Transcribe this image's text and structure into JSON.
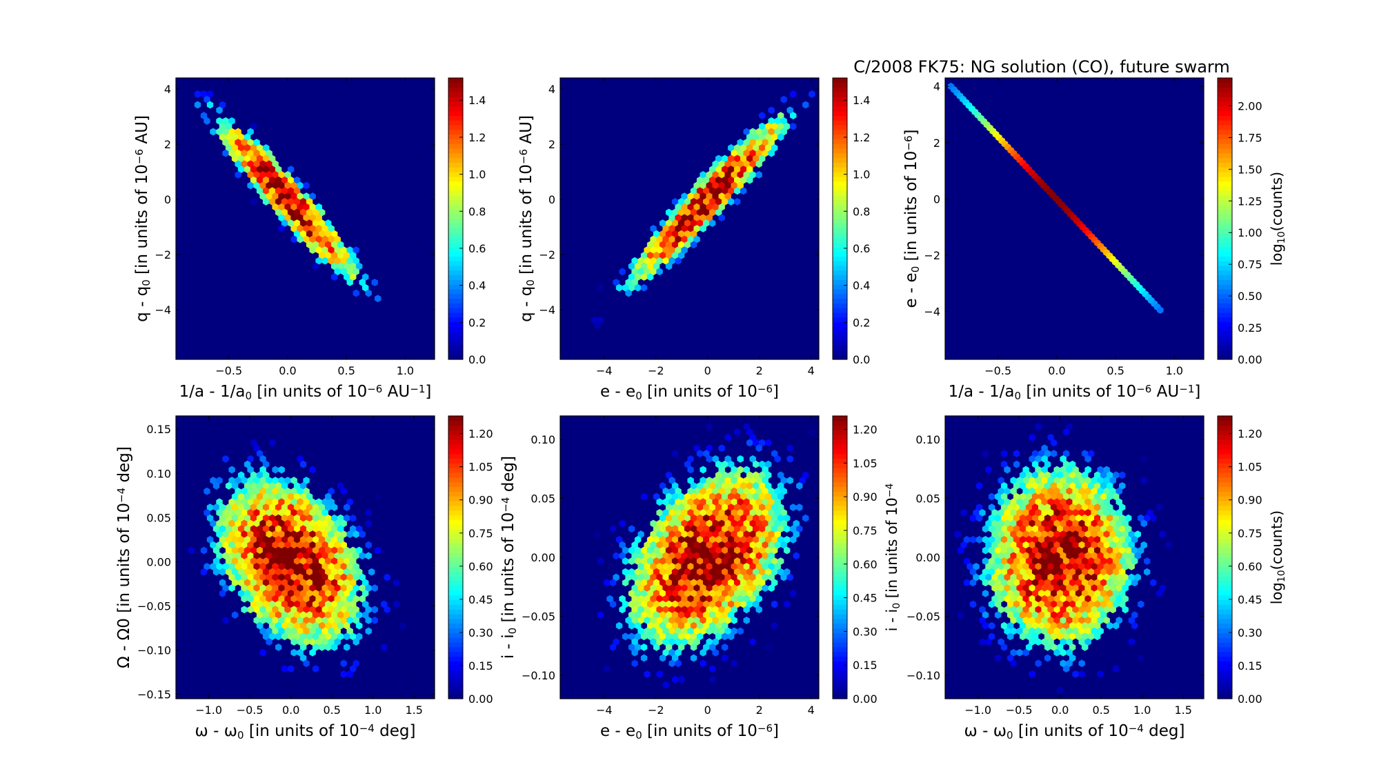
{
  "figure_title": "C/2008 FK75:  NG solution (CO), future swarm",
  "chart_data": [
    {
      "type": "heatmap",
      "subtype": "hexbin",
      "xlabel": "1/a - 1/a0 [in units of 10^-6 AU^-1]",
      "ylabel": "q - q0 [in units of 10^-6 AU]",
      "xlim": [
        -0.95,
        1.25
      ],
      "ylim": [
        -5.8,
        4.4
      ],
      "xticks": [
        -0.5,
        0.0,
        0.5,
        1.0
      ],
      "yticks": [
        -4,
        -2,
        0,
        2,
        4
      ],
      "distribution": {
        "center_x": 0.0,
        "center_y": 0.0,
        "sd_x": 0.3,
        "sd_y": 1.45,
        "correlation": -0.95,
        "extent_x": [
          -0.9,
          1.22
        ],
        "extent_y": [
          -4.8,
          4.0
        ]
      },
      "colorbar": {
        "ticks": [
          "0.0",
          "0.2",
          "0.4",
          "0.6",
          "0.8",
          "1.0",
          "1.2",
          "1.4"
        ],
        "max": 1.52,
        "label": ""
      }
    },
    {
      "type": "heatmap",
      "subtype": "hexbin",
      "xlabel": "e - e0 [in units of 10^-6]",
      "ylabel": "q - q0 [in units of 10^-6 AU]",
      "xlim": [
        -5.7,
        4.3
      ],
      "ylim": [
        -5.8,
        4.4
      ],
      "xticks": [
        -4,
        -2,
        0,
        2,
        4
      ],
      "yticks": [
        -4,
        -2,
        0,
        2,
        4
      ],
      "distribution": {
        "center_x": 0.0,
        "center_y": 0.0,
        "sd_x": 1.45,
        "sd_y": 1.45,
        "correlation": 0.95,
        "extent_x": [
          -5.6,
          4.1
        ],
        "extent_y": [
          -4.8,
          4.0
        ]
      },
      "colorbar": {
        "ticks": [
          "0.0",
          "0.2",
          "0.4",
          "0.6",
          "0.8",
          "1.0",
          "1.2",
          "1.4"
        ],
        "max": 1.52,
        "label": ""
      }
    },
    {
      "type": "heatmap",
      "subtype": "hexbin",
      "title": "C/2008 FK75:  NG solution (CO), future swarm",
      "xlabel": "1/a - 1/a0 [in units of 10^-6 AU^-1]",
      "ylabel": "e - e0 [in units of 10^-6]",
      "xlim": [
        -0.95,
        1.25
      ],
      "ylim": [
        -5.7,
        4.3
      ],
      "xticks": [
        -0.5,
        0.0,
        0.5,
        1.0
      ],
      "yticks": [
        -4,
        -2,
        0,
        2,
        4
      ],
      "line": {
        "x0": -0.9,
        "y0": 4.0,
        "x1": 0.88,
        "y1": -3.95
      },
      "colorbar": {
        "ticks": [
          "0.00",
          "0.25",
          "0.50",
          "0.75",
          "1.00",
          "1.25",
          "1.50",
          "1.75",
          "2.00"
        ],
        "max": 2.22,
        "label": "log10(counts)"
      }
    },
    {
      "type": "heatmap",
      "subtype": "hexbin",
      "xlabel": "ω - ω0 [in units of 10^-4 deg]",
      "ylabel": "Ω - Ω0 [in units of 10^-4 deg]",
      "xlim": [
        -1.4,
        1.75
      ],
      "ylim": [
        -0.155,
        0.165
      ],
      "xticks": [
        -1.0,
        -0.5,
        0.0,
        0.5,
        1.0,
        1.5
      ],
      "yticks": [
        -0.15,
        -0.1,
        -0.05,
        0.0,
        0.05,
        0.1,
        0.15
      ],
      "distribution": {
        "center_x": 0.0,
        "center_y": 0.0,
        "sd_x": 0.42,
        "sd_y": 0.045,
        "correlation": -0.35,
        "extent_x": [
          -1.35,
          1.6
        ],
        "extent_y": [
          -0.15,
          0.16
        ]
      },
      "colorbar": {
        "ticks": [
          "0.00",
          "0.15",
          "0.30",
          "0.45",
          "0.60",
          "0.75",
          "0.90",
          "1.05",
          "1.20"
        ],
        "max": 1.28,
        "label": ""
      }
    },
    {
      "type": "heatmap",
      "subtype": "hexbin",
      "xlabel": "e - e0 [in units of 10^-6]",
      "ylabel": "i - i0 [in units of 10^-4 deg]",
      "xlim": [
        -5.7,
        4.3
      ],
      "ylim": [
        -0.12,
        0.12
      ],
      "xticks": [
        -4,
        -2,
        0,
        2,
        4
      ],
      "yticks": [
        -0.1,
        -0.05,
        0.0,
        0.05,
        0.1
      ],
      "distribution": {
        "center_x": 0.0,
        "center_y": 0.0,
        "sd_x": 1.45,
        "sd_y": 0.036,
        "correlation": 0.4,
        "extent_x": [
          -5.5,
          4.1
        ],
        "extent_y": [
          -0.115,
          0.115
        ]
      },
      "colorbar": {
        "ticks": [
          "0.00",
          "0.15",
          "0.30",
          "0.45",
          "0.60",
          "0.75",
          "0.90",
          "1.05",
          "1.20"
        ],
        "max": 1.26,
        "label": "i - i0 [in units of 10^-4"
      }
    },
    {
      "type": "heatmap",
      "subtype": "hexbin",
      "xlabel": "ω - ω0 [in units of 10^-4 deg]",
      "ylabel": "",
      "xlim": [
        -1.4,
        1.75
      ],
      "ylim": [
        -0.12,
        0.12
      ],
      "xticks": [
        -1.0,
        -0.5,
        0.0,
        0.5,
        1.0,
        1.5
      ],
      "yticks": [
        -0.1,
        -0.05,
        0.0,
        0.05,
        0.1
      ],
      "distribution": {
        "center_x": 0.0,
        "center_y": 0.0,
        "sd_x": 0.42,
        "sd_y": 0.036,
        "correlation": 0.0,
        "extent_x": [
          -1.3,
          1.6
        ],
        "extent_y": [
          -0.115,
          0.115
        ]
      },
      "colorbar": {
        "ticks": [
          "0.00",
          "0.15",
          "0.30",
          "0.45",
          "0.60",
          "0.75",
          "0.90",
          "1.05",
          "1.20"
        ],
        "max": 1.28,
        "label": "log10(counts)"
      }
    }
  ]
}
